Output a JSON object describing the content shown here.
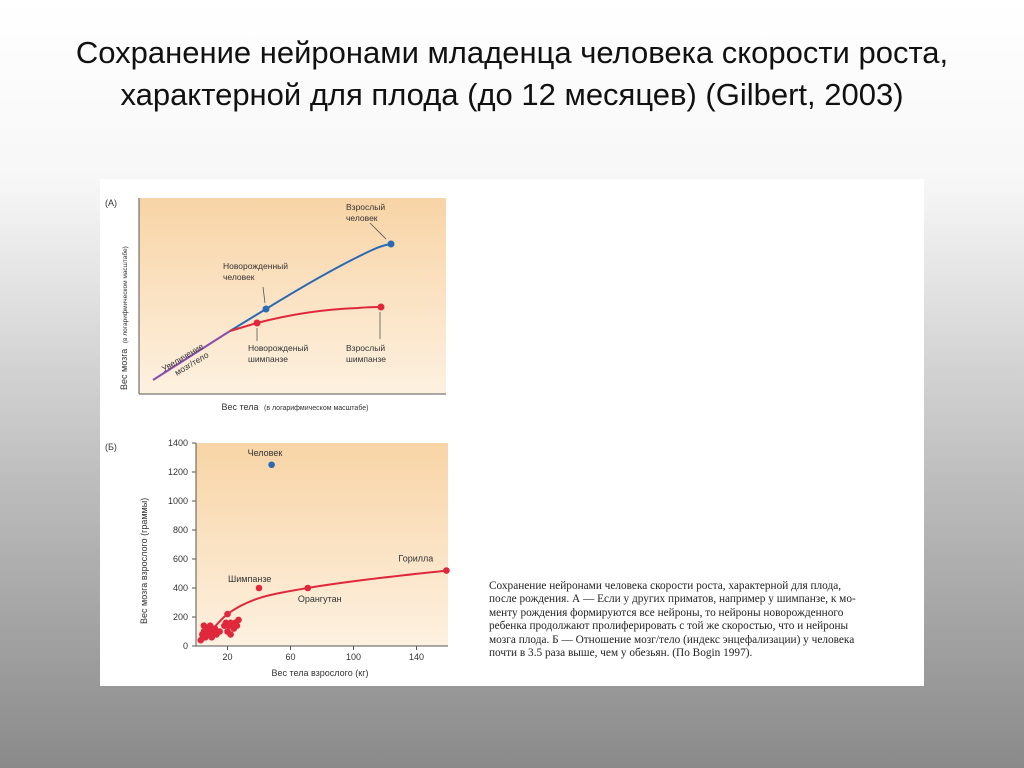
{
  "slide": {
    "title": "Сохранение нейронами младенца человека скорости роста, характерной для плода (до 12 месяцев) (Gilbert, 2003)"
  },
  "caption": {
    "text": "Сохранение нейронами человека скорости роста, характерной для плода,\nпосле рождения. А — Если у других приматов, например у шимпанзе, к мо-\nменту рождения формируются все нейроны, то нейроны новорожденного\nребенка продолжают пролиферировать с той же скоростью, что и нейроны\nмозга плода. Б — Отношение мозг/тело (индекс энцефализации) у человека\nпочти в 3.5 раза выше, чем у обезьян. (По Bogin 1997)."
  },
  "colors": {
    "panel_top": "#f8d4a6",
    "panel_bottom": "#fdf1e0",
    "human": "#2b6ab3",
    "chimp": "#e0283c",
    "trunk": "#8a4bb0"
  },
  "chart_data": [
    {
      "type": "line",
      "panel_label": "(A)",
      "xlabel": "Вес тела",
      "xlabel_note": "(в логарифмическом масштабе)",
      "ylabel": "Вес мозга",
      "ylabel_note": "(в логарифмическом масштабе)",
      "trunk_label_lines": [
        "Увеличение",
        "мозг/тело"
      ],
      "series": [
        {
          "key": "human"
        },
        {
          "key": "chimp"
        }
      ],
      "points": [
        {
          "label_lines": [
            "Новорожденный",
            "человек"
          ],
          "series": "human"
        },
        {
          "label_lines": [
            "Взрослый",
            "человек"
          ],
          "series": "human"
        },
        {
          "label_lines": [
            "Новорожденый",
            "шимпанзе"
          ],
          "series": "chimp"
        },
        {
          "label_lines": [
            "Взрослый",
            "шимпанзе"
          ],
          "series": "chimp"
        }
      ]
    },
    {
      "type": "scatter",
      "panel_label": "(Б)",
      "xlabel": "Вес тела взрослого (кг)",
      "ylabel": "Вес мозга взрослого (граммы)",
      "xlim": [
        0,
        160
      ],
      "ylim": [
        0,
        1400
      ],
      "xticks": [
        20,
        60,
        100,
        140
      ],
      "yticks": [
        0,
        200,
        400,
        600,
        800,
        1000,
        1200,
        1400
      ],
      "labeled_points": [
        {
          "name": "Человек",
          "x": 48,
          "y": 1250,
          "color": "#2b6ab3"
        },
        {
          "name": "Шимпанзе",
          "x": 40,
          "y": 400,
          "color": "#e0283c"
        },
        {
          "name": "Орангутан",
          "x": 71,
          "y": 400,
          "color": "#e0283c"
        },
        {
          "name": "Горилла",
          "x": 159,
          "y": 520,
          "color": "#e0283c"
        }
      ],
      "primate_points": [
        {
          "x": 20,
          "y": 220
        },
        {
          "x": 3,
          "y": 40
        },
        {
          "x": 4,
          "y": 80
        },
        {
          "x": 5,
          "y": 100
        },
        {
          "x": 5,
          "y": 140
        },
        {
          "x": 6,
          "y": 60
        },
        {
          "x": 7,
          "y": 120
        },
        {
          "x": 8,
          "y": 80
        },
        {
          "x": 9,
          "y": 100
        },
        {
          "x": 9,
          "y": 140
        },
        {
          "x": 10,
          "y": 60
        },
        {
          "x": 11,
          "y": 90
        },
        {
          "x": 12,
          "y": 120
        },
        {
          "x": 13,
          "y": 80
        },
        {
          "x": 15,
          "y": 100
        },
        {
          "x": 18,
          "y": 140
        },
        {
          "x": 19,
          "y": 160
        },
        {
          "x": 20,
          "y": 100
        },
        {
          "x": 21,
          "y": 140
        },
        {
          "x": 22,
          "y": 160
        },
        {
          "x": 24,
          "y": 120
        },
        {
          "x": 25,
          "y": 160
        },
        {
          "x": 26,
          "y": 140
        },
        {
          "x": 27,
          "y": 180
        },
        {
          "x": 22,
          "y": 80
        }
      ],
      "trend": [
        {
          "x": 5,
          "y": 40
        },
        {
          "x": 20,
          "y": 220
        },
        {
          "x": 40,
          "y": 330
        },
        {
          "x": 71,
          "y": 400
        },
        {
          "x": 110,
          "y": 460
        },
        {
          "x": 159,
          "y": 520
        }
      ]
    }
  ]
}
